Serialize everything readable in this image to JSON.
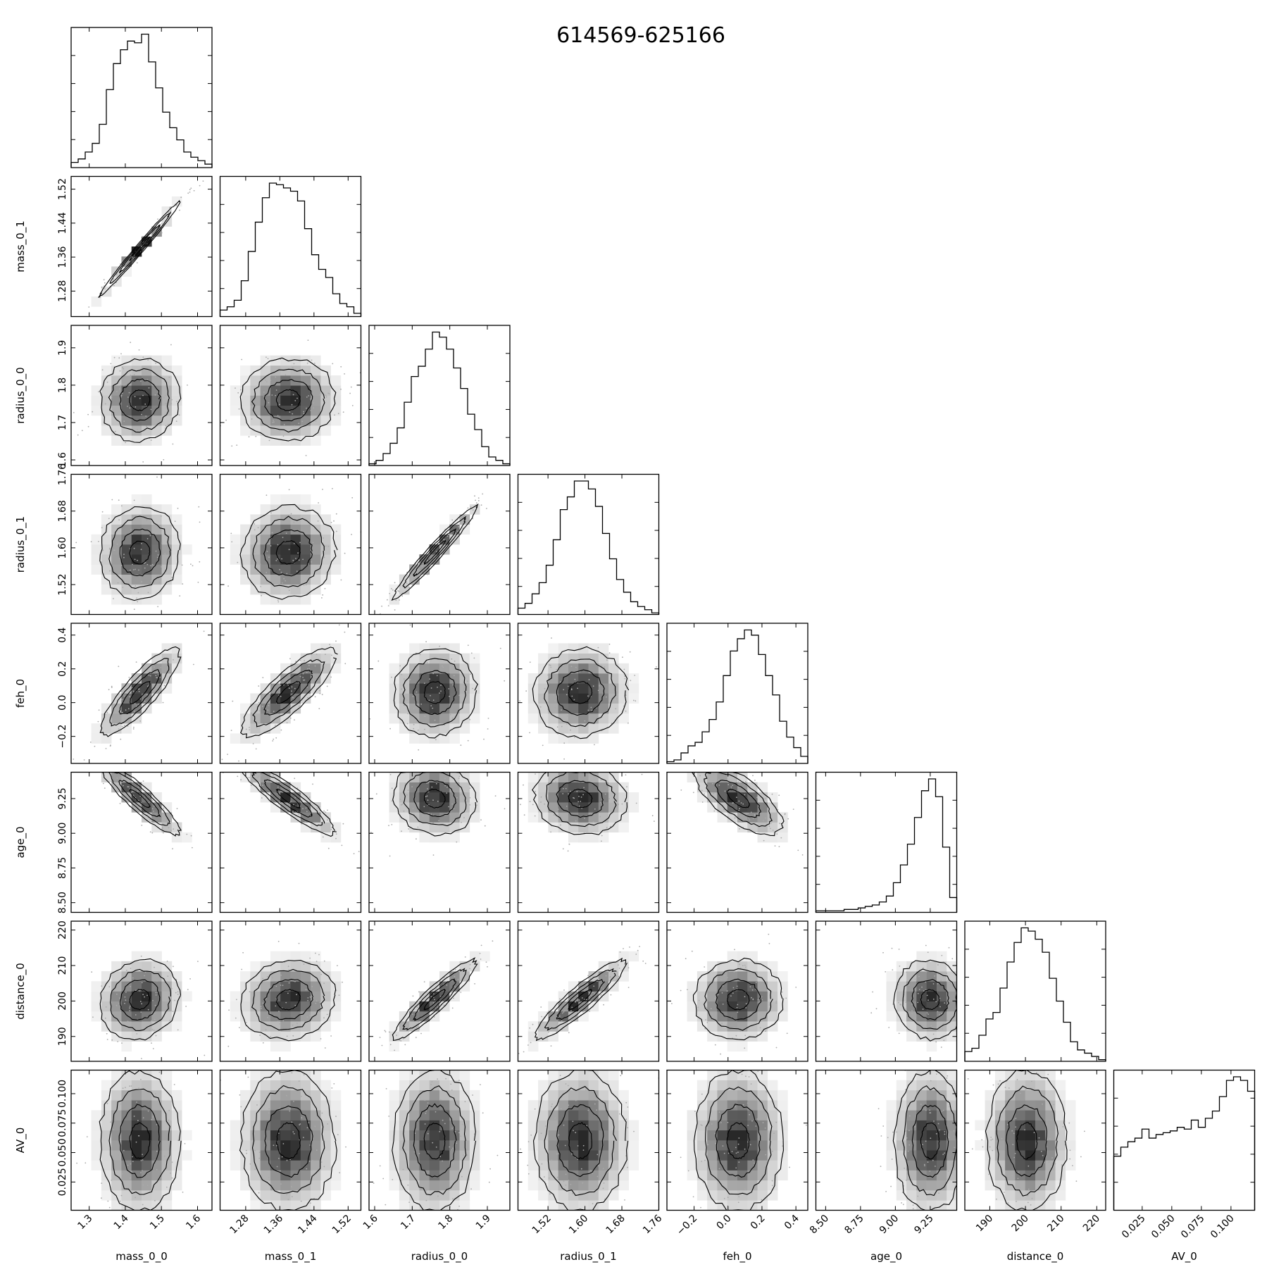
{
  "chart_data": {
    "type": "corner",
    "title": "614569-625166",
    "params": [
      "mass_0_0",
      "mass_0_1",
      "radius_0_0",
      "radius_0_1",
      "feh_0",
      "age_0",
      "distance_0",
      "AV_0"
    ],
    "ranges": [
      [
        1.25,
        1.64
      ],
      [
        1.22,
        1.55
      ],
      [
        1.585,
        1.96
      ],
      [
        1.455,
        1.76
      ],
      [
        -0.36,
        0.47
      ],
      [
        8.43,
        9.44
      ],
      [
        183,
        222.5
      ],
      [
        0.001,
        0.12
      ]
    ],
    "ticks": [
      [
        "1.3",
        "1.4",
        "1.5",
        "1.6"
      ],
      [
        "1.28",
        "1.36",
        "1.44",
        "1.52"
      ],
      [
        "1.6",
        "1.7",
        "1.8",
        "1.9"
      ],
      [
        "1.52",
        "1.60",
        "1.68",
        "1.76"
      ],
      [
        "−0.2",
        "0.0",
        "0.2",
        "0.4"
      ],
      [
        "8.50",
        "8.75",
        "9.00",
        "9.25"
      ],
      [
        "190",
        "200",
        "210",
        "220"
      ],
      [
        "0.025",
        "0.050",
        "0.075",
        "0.100"
      ]
    ],
    "tick_values": [
      [
        1.3,
        1.4,
        1.5,
        1.6
      ],
      [
        1.28,
        1.36,
        1.44,
        1.52
      ],
      [
        1.6,
        1.7,
        1.8,
        1.9
      ],
      [
        1.52,
        1.6,
        1.68,
        1.76
      ],
      [
        -0.2,
        0.0,
        0.2,
        0.4
      ],
      [
        8.5,
        8.75,
        9.0,
        9.25
      ],
      [
        190,
        200,
        210,
        220
      ],
      [
        0.025,
        0.05,
        0.075,
        0.1
      ]
    ],
    "histograms": [
      [
        3,
        5,
        9,
        14,
        25,
        45,
        60,
        68,
        73,
        72,
        77,
        61,
        46,
        32,
        23,
        16,
        9,
        6,
        4,
        2
      ],
      [
        4,
        6,
        10,
        22,
        40,
        58,
        73,
        82,
        81,
        79,
        77,
        71,
        54,
        38,
        29,
        24,
        14,
        8,
        6,
        2
      ],
      [
        1,
        3,
        7,
        13,
        22,
        37,
        52,
        58,
        68,
        78,
        75,
        68,
        57,
        45,
        30,
        21,
        11,
        5,
        3,
        1
      ],
      [
        4,
        7,
        13,
        20,
        31,
        47,
        66,
        74,
        84,
        84,
        79,
        68,
        51,
        35,
        22,
        14,
        8,
        5,
        3,
        1
      ],
      [
        1,
        2,
        6,
        10,
        12,
        18,
        25,
        35,
        50,
        64,
        71,
        76,
        73,
        62,
        50,
        39,
        24,
        15,
        9,
        4
      ],
      [
        1,
        1,
        1,
        1,
        2,
        2,
        3,
        4,
        5,
        7,
        11,
        20,
        32,
        46,
        64,
        82,
        90,
        78,
        44,
        10
      ],
      [
        6,
        8,
        16,
        26,
        30,
        45,
        61,
        73,
        82,
        80,
        75,
        67,
        51,
        37,
        24,
        12,
        7,
        5,
        3,
        1
      ],
      [
        30,
        35,
        38,
        40,
        45,
        40,
        42,
        43,
        44,
        46,
        45,
        50,
        46,
        51,
        55,
        63,
        72,
        74,
        72,
        66
      ]
    ],
    "means": [
      1.44,
      1.38,
      1.76,
      1.59,
      0.06,
      9.25,
      200.4,
      0.06
    ],
    "sigmas": [
      0.055,
      0.055,
      0.055,
      0.05,
      0.13,
      0.13,
      5.6,
      0.03
    ],
    "correlations": [
      [
        1.0
      ],
      [
        0.99,
        1.0
      ],
      [
        0.05,
        0.05,
        1.0
      ],
      [
        0.05,
        0.05,
        0.97,
        1.0
      ],
      [
        0.85,
        0.83,
        0.05,
        0.05,
        1.0
      ],
      [
        -0.9,
        -0.9,
        -0.1,
        -0.1,
        -0.7,
        1.0
      ],
      [
        0.1,
        0.12,
        0.92,
        0.91,
        0.02,
        -0.05,
        1.0
      ],
      [
        0.0,
        0.0,
        0.0,
        0.0,
        0.0,
        0.0,
        0.0,
        1.0
      ]
    ],
    "contour_levels": [
      0.5,
      1.0,
      1.5,
      2.0
    ],
    "grid": false,
    "legend": "none"
  }
}
